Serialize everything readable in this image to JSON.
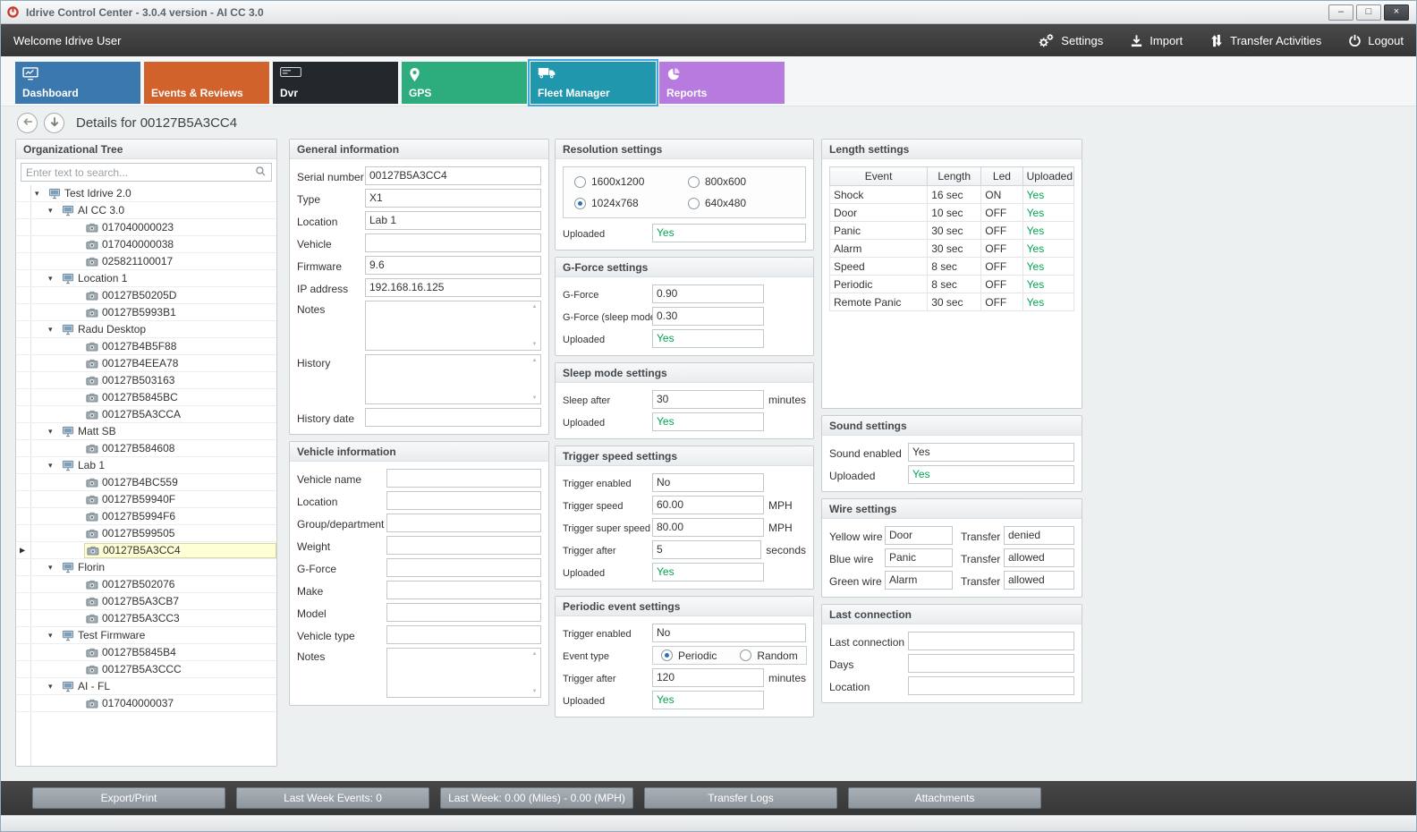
{
  "window": {
    "title": "Idrive Control Center - 3.0.4 version - AI CC 3.0"
  },
  "topbar": {
    "welcome": "Welcome Idrive User",
    "actions": [
      {
        "id": "settings",
        "label": "Settings"
      },
      {
        "id": "import",
        "label": "Import"
      },
      {
        "id": "transfer-activities",
        "label": "Transfer Activities"
      },
      {
        "id": "logout",
        "label": "Logout"
      }
    ]
  },
  "tabs": [
    {
      "id": "dashboard",
      "label": "Dashboard",
      "color": "#3a78ad",
      "selected": false
    },
    {
      "id": "events-reviews",
      "label": "Events & Reviews",
      "color": "#d2622b",
      "selected": false
    },
    {
      "id": "dvr",
      "label": "Dvr",
      "color": "#23282c",
      "selected": false
    },
    {
      "id": "gps",
      "label": "GPS",
      "color": "#2dac7e",
      "selected": false
    },
    {
      "id": "fleet-manager",
      "label": "Fleet Manager",
      "color": "#2097ad",
      "selected": true
    },
    {
      "id": "reports",
      "label": "Reports",
      "color": "#b77ade",
      "selected": false
    }
  ],
  "page_title": "Details for 00127B5A3CC4",
  "org_tree": {
    "title": "Organizational Tree",
    "search_placeholder": "Enter text to search...",
    "items": [
      {
        "label": "Test Idrive 2.0",
        "level": 0,
        "type": "group"
      },
      {
        "label": "AI CC 3.0",
        "level": 1,
        "type": "group"
      },
      {
        "label": "017040000023",
        "level": 2,
        "type": "device"
      },
      {
        "label": "017040000038",
        "level": 2,
        "type": "device"
      },
      {
        "label": "025821100017",
        "level": 2,
        "type": "device"
      },
      {
        "label": "Location 1",
        "level": 1,
        "type": "group"
      },
      {
        "label": "00127B50205D",
        "level": 2,
        "type": "device"
      },
      {
        "label": "00127B5993B1",
        "level": 2,
        "type": "device"
      },
      {
        "label": "Radu Desktop",
        "level": 1,
        "type": "group"
      },
      {
        "label": "00127B4B5F88",
        "level": 2,
        "type": "device"
      },
      {
        "label": "00127B4EEA78",
        "level": 2,
        "type": "device"
      },
      {
        "label": "00127B503163",
        "level": 2,
        "type": "device"
      },
      {
        "label": "00127B5845BC",
        "level": 2,
        "type": "device"
      },
      {
        "label": "00127B5A3CCA",
        "level": 2,
        "type": "device"
      },
      {
        "label": "Matt SB",
        "level": 1,
        "type": "group"
      },
      {
        "label": "00127B584608",
        "level": 2,
        "type": "device"
      },
      {
        "label": "Lab 1",
        "level": 1,
        "type": "group"
      },
      {
        "label": "00127B4BC559",
        "level": 2,
        "type": "device"
      },
      {
        "label": "00127B59940F",
        "level": 2,
        "type": "device"
      },
      {
        "label": "00127B5994F6",
        "level": 2,
        "type": "device"
      },
      {
        "label": "00127B599505",
        "level": 2,
        "type": "device"
      },
      {
        "label": "00127B5A3CC4",
        "level": 2,
        "type": "device",
        "selected": true
      },
      {
        "label": "Florin",
        "level": 1,
        "type": "group"
      },
      {
        "label": "00127B502076",
        "level": 2,
        "type": "device"
      },
      {
        "label": "00127B5A3CB7",
        "level": 2,
        "type": "device"
      },
      {
        "label": "00127B5A3CC3",
        "level": 2,
        "type": "device"
      },
      {
        "label": "Test Firmware",
        "level": 1,
        "type": "group"
      },
      {
        "label": "00127B5845B4",
        "level": 2,
        "type": "device"
      },
      {
        "label": "00127B5A3CCC",
        "level": 2,
        "type": "device"
      },
      {
        "label": "AI - FL",
        "level": 1,
        "type": "group"
      },
      {
        "label": "017040000037",
        "level": 2,
        "type": "device"
      }
    ]
  },
  "groups": {
    "general_information": {
      "title": "General information",
      "fields": [
        {
          "label": "Serial number",
          "type": "text",
          "value": "00127B5A3CC4"
        },
        {
          "label": "Type",
          "type": "text",
          "value": "X1"
        },
        {
          "label": "Location",
          "type": "text",
          "value": "Lab 1"
        },
        {
          "label": "Vehicle",
          "type": "text",
          "value": ""
        },
        {
          "label": "Firmware",
          "type": "text",
          "value": "9.6"
        },
        {
          "label": "IP address",
          "type": "text",
          "value": "192.168.16.125"
        },
        {
          "label": "Notes",
          "type": "textarea",
          "value": ""
        },
        {
          "label": "History",
          "type": "textarea",
          "value": ""
        },
        {
          "label": "History date",
          "type": "text",
          "value": ""
        }
      ]
    },
    "vehicle_information": {
      "title": "Vehicle information",
      "fields": [
        {
          "label": "Vehicle name",
          "type": "text",
          "value": ""
        },
        {
          "label": "Location",
          "type": "text",
          "value": ""
        },
        {
          "label": "Group/department",
          "type": "text",
          "value": ""
        },
        {
          "label": "Weight",
          "type": "text",
          "value": ""
        },
        {
          "label": "G-Force",
          "type": "text",
          "value": ""
        },
        {
          "label": "Make",
          "type": "text",
          "value": ""
        },
        {
          "label": "Model",
          "type": "text",
          "value": ""
        },
        {
          "label": "Vehicle type",
          "type": "text",
          "value": ""
        },
        {
          "label": "Notes",
          "type": "textarea",
          "value": ""
        }
      ]
    },
    "resolution_settings": {
      "title": "Resolution settings",
      "fields": [
        {
          "type": "radio-grid",
          "options": [
            {
              "label": "1600x1200",
              "selected": false
            },
            {
              "label": "800x600",
              "selected": false
            },
            {
              "label": "1024x768",
              "selected": true
            },
            {
              "label": "640x480",
              "selected": false
            }
          ]
        },
        {
          "label": "Uploaded",
          "type": "green",
          "value": "Yes"
        }
      ]
    },
    "gforce_settings": {
      "title": "G-Force settings",
      "fields": [
        {
          "label": "G-Force",
          "type": "text",
          "value": "0.90",
          "suffix": ""
        },
        {
          "label": "G-Force (sleep mode)",
          "type": "text",
          "value": "0.30",
          "suffix": ""
        },
        {
          "label": "Uploaded",
          "type": "green",
          "value": "Yes",
          "suffix": ""
        }
      ]
    },
    "sleep_mode_settings": {
      "title": "Sleep mode settings",
      "fields": [
        {
          "label": "Sleep after",
          "type": "text",
          "value": "30",
          "suffix": "minutes"
        },
        {
          "label": "Uploaded",
          "type": "green",
          "value": "Yes",
          "suffix": ""
        }
      ]
    },
    "trigger_speed_settings": {
      "title": "Trigger speed settings",
      "fields": [
        {
          "label": "Trigger enabled",
          "type": "text",
          "value": "No",
          "suffix": ""
        },
        {
          "label": "Trigger speed",
          "type": "text",
          "value": "60.00",
          "suffix": "MPH"
        },
        {
          "label": "Trigger super speed",
          "type": "text",
          "value": "80.00",
          "suffix": "MPH"
        },
        {
          "label": "Trigger after",
          "type": "text",
          "value": "5",
          "suffix": "seconds"
        },
        {
          "label": "Uploaded",
          "type": "green",
          "value": "Yes",
          "suffix": ""
        }
      ]
    },
    "periodic_event_settings": {
      "title": "Periodic event settings",
      "fields": [
        {
          "label": "Trigger enabled",
          "type": "text",
          "value": "No"
        },
        {
          "label": "Event type",
          "type": "radio-inline",
          "options": [
            {
              "label": "Periodic",
              "selected": true
            },
            {
              "label": "Random",
              "selected": false
            }
          ]
        },
        {
          "label": "Trigger after",
          "type": "text",
          "value": "120",
          "suffix": "minutes"
        },
        {
          "label": "Uploaded",
          "type": "green",
          "value": "Yes",
          "suffix": ""
        }
      ]
    },
    "length_settings": {
      "title": "Length settings",
      "columns": [
        "Event",
        "Length",
        "Led",
        "Uploaded"
      ],
      "rows": [
        [
          "Shock",
          "16 sec",
          "ON",
          "Yes"
        ],
        [
          "Door",
          "10 sec",
          "OFF",
          "Yes"
        ],
        [
          "Panic",
          "30 sec",
          "OFF",
          "Yes"
        ],
        [
          "Alarm",
          "30 sec",
          "OFF",
          "Yes"
        ],
        [
          "Speed",
          "8 sec",
          "OFF",
          "Yes"
        ],
        [
          "Periodic",
          "8 sec",
          "OFF",
          "Yes"
        ],
        [
          "Remote Panic",
          "30 sec",
          "OFF",
          "Yes"
        ]
      ]
    },
    "sound_settings": {
      "title": "Sound settings",
      "fields": [
        {
          "label": "Sound enabled",
          "type": "text",
          "value": "Yes"
        },
        {
          "label": "Uploaded",
          "type": "green",
          "value": "Yes"
        }
      ]
    },
    "wire_settings": {
      "title": "Wire settings",
      "fields": [
        {
          "type": "pair",
          "label": "Yellow wire",
          "value": "Door",
          "label2": "Transfer",
          "value2": "denied"
        },
        {
          "type": "pair",
          "label": "Blue wire",
          "value": "Panic",
          "label2": "Transfer",
          "value2": "allowed"
        },
        {
          "type": "pair",
          "label": "Green wire",
          "value": "Alarm",
          "label2": "Transfer",
          "value2": "allowed"
        }
      ]
    },
    "last_connection": {
      "title": "Last connection",
      "fields": [
        {
          "label": "Last connection",
          "type": "text",
          "value": ""
        },
        {
          "label": "Days",
          "type": "text",
          "value": ""
        },
        {
          "label": "Location",
          "type": "text",
          "value": ""
        }
      ]
    }
  },
  "footer": {
    "buttons": [
      {
        "id": "export-print",
        "label": "Export/Print"
      },
      {
        "id": "last-week-events",
        "label": "Last Week Events: 0"
      },
      {
        "id": "last-week-stats",
        "label": "Last Week: 0.00 (Miles) - 0.00 (MPH)"
      },
      {
        "id": "transfer-logs",
        "label": "Transfer Logs"
      },
      {
        "id": "attachments",
        "label": "Attachments"
      }
    ]
  },
  "icons": {
    "minimize": "–",
    "maximize": "□",
    "close": "×",
    "expander_expanded": "▾",
    "current_row_pointer": "▶",
    "scroll_up": "▲",
    "scroll_down": "▼"
  },
  "colors": {
    "uploaded_yes_green": "#00a651",
    "selected_tab_outline": "#3fa9de",
    "tree_selection_bg": "#ffffd6"
  }
}
